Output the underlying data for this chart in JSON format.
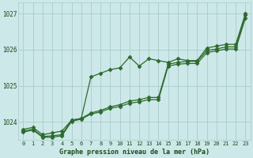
{
  "title": "Graphe pression niveau de la mer (hPa)",
  "x_labels": [
    "0",
    "1",
    "2",
    "3",
    "4",
    "5",
    "6",
    "7",
    "8",
    "9",
    "10",
    "11",
    "12",
    "13",
    "14",
    "15",
    "16",
    "17",
    "18",
    "19",
    "20",
    "21",
    "22",
    "23"
  ],
  "ylim": [
    1023.5,
    1027.3
  ],
  "yticks": [
    1024,
    1025,
    1026,
    1027
  ],
  "background_color": "#cce8e8",
  "grid_color": "#aacccc",
  "line_color": "#2d6a2d",
  "line1": [
    1023.8,
    1023.85,
    1023.65,
    1023.7,
    1023.75,
    1024.05,
    1024.1,
    1025.25,
    1025.35,
    1025.45,
    1025.5,
    1025.8,
    1025.55,
    1025.75,
    1025.7,
    1025.65,
    1025.75,
    1025.7,
    1025.7,
    1026.05,
    1026.1,
    1026.15,
    1026.15,
    1027.0
  ],
  "line2": [
    1023.75,
    1023.8,
    1023.6,
    1023.62,
    1023.65,
    1024.05,
    1024.1,
    1024.25,
    1024.32,
    1024.42,
    1024.48,
    1024.58,
    1024.62,
    1024.68,
    1024.68,
    1025.6,
    1025.65,
    1025.68,
    1025.68,
    1025.98,
    1026.02,
    1026.08,
    1026.08,
    1026.95
  ],
  "line3": [
    1023.72,
    1023.78,
    1023.58,
    1023.58,
    1023.62,
    1024.02,
    1024.08,
    1024.22,
    1024.28,
    1024.38,
    1024.43,
    1024.52,
    1024.56,
    1024.62,
    1024.62,
    1025.55,
    1025.6,
    1025.62,
    1025.62,
    1025.92,
    1025.97,
    1026.02,
    1026.02,
    1026.88
  ]
}
